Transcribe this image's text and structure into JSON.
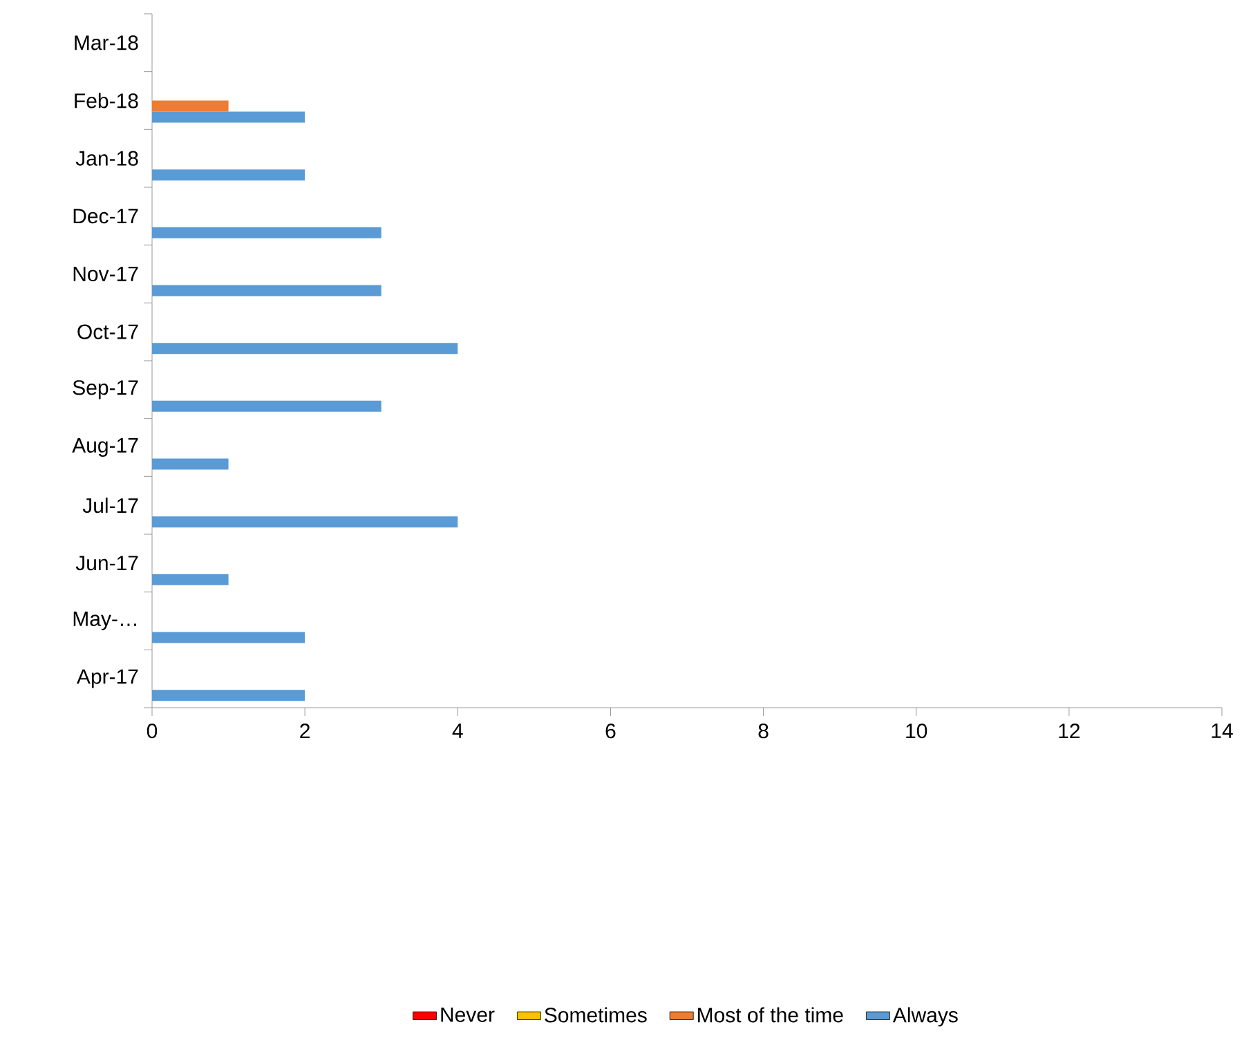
{
  "chart_data": {
    "type": "bar",
    "orientation": "horizontal",
    "categories": [
      "Mar-18",
      "Feb-18",
      "Jan-18",
      "Dec-17",
      "Nov-17",
      "Oct-17",
      "Sep-17",
      "Aug-17",
      "Jul-17",
      "Jun-17",
      "May-…",
      "Apr-17"
    ],
    "series": [
      {
        "name": "Never",
        "color": "#ff0000",
        "values": [
          0,
          0,
          0,
          0,
          0,
          0,
          0,
          0,
          0,
          0,
          0,
          0
        ]
      },
      {
        "name": "Sometimes",
        "color": "#ffc000",
        "values": [
          0,
          0,
          0,
          0,
          0,
          0,
          0,
          0,
          0,
          0,
          0,
          0
        ]
      },
      {
        "name": "Most of the time",
        "color": "#ed7d31",
        "values": [
          0,
          1,
          0,
          0,
          0,
          0,
          0,
          0,
          0,
          0,
          0,
          0
        ]
      },
      {
        "name": "Always",
        "color": "#5b9bd5",
        "values": [
          0,
          2,
          2,
          3,
          3,
          4,
          3,
          1,
          4,
          1,
          2,
          2
        ]
      }
    ],
    "xlim": [
      0,
      14
    ],
    "xticks": [
      0,
      2,
      4,
      6,
      8,
      10,
      12,
      14
    ],
    "grid": false,
    "legend": "bottom"
  }
}
